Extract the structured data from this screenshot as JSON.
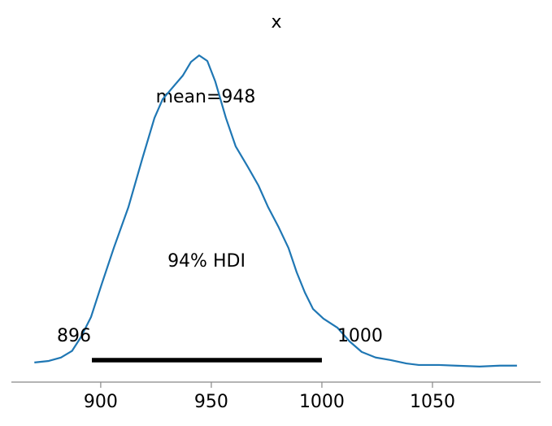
{
  "chart_data": {
    "type": "line",
    "title": "x",
    "x": [
      870,
      876.5,
      882,
      887,
      891,
      895.6,
      900.4,
      905.9,
      912.5,
      918.8,
      924.3,
      928,
      932.4,
      937.1,
      940.8,
      944.5,
      948.2,
      951.8,
      956.6,
      961,
      966.5,
      971.3,
      975.7,
      980.5,
      984.9,
      988.6,
      992.3,
      996,
      1000.7,
      1007,
      1012.5,
      1018,
      1024.3,
      1030.9,
      1038.2,
      1043.8,
      1053,
      1060.3,
      1071.3,
      1080.5,
      1088.2
    ],
    "series": [
      {
        "color": "#1f77b4",
        "values": [
          0.013,
          0.018,
          0.029,
          0.05,
          0.094,
          0.159,
          0.264,
          0.381,
          0.512,
          0.668,
          0.799,
          0.859,
          0.896,
          0.935,
          0.979,
          1.0,
          0.982,
          0.916,
          0.799,
          0.708,
          0.642,
          0.582,
          0.512,
          0.447,
          0.381,
          0.303,
          0.238,
          0.185,
          0.154,
          0.125,
          0.081,
          0.047,
          0.029,
          0.021,
          0.01,
          0.005,
          0.005,
          0.003,
          0,
          0.003,
          0.003
        ]
      }
    ],
    "xlim": [
      859.6,
      1098.9
    ],
    "xticks": [
      900,
      950,
      1000,
      1050
    ],
    "ylim": [
      -0.05,
      1.05
    ],
    "mean_label": "mean=948",
    "hdi": {
      "label": "94% HDI",
      "lower": 896,
      "upper": 1000,
      "color": "#000000"
    }
  }
}
